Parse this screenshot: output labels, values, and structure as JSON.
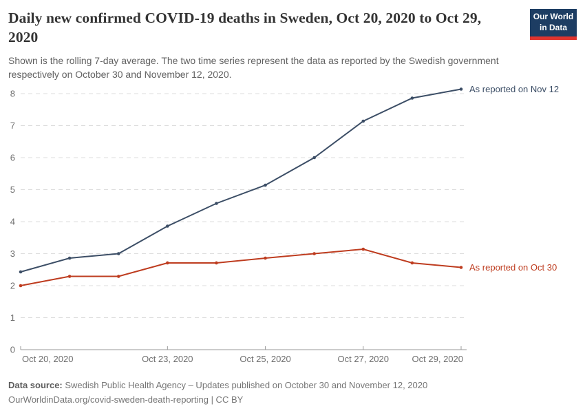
{
  "header": {
    "logo": {
      "line1": "Our World",
      "line2": "in Data",
      "bg_color": "#1d3d63",
      "accent_color": "#e0342e"
    }
  },
  "chart_data": {
    "type": "line",
    "title": "Daily new confirmed COVID-19 deaths in Sweden, Oct 20, 2020 to Oct 29, 2020",
    "subtitle": "Shown is the rolling 7-day average. The two time series represent the data as reported by the Swedish government respectively on October 30 and November 12, 2020.",
    "x": [
      "Oct 20, 2020",
      "Oct 21, 2020",
      "Oct 22, 2020",
      "Oct 23, 2020",
      "Oct 24, 2020",
      "Oct 25, 2020",
      "Oct 26, 2020",
      "Oct 27, 2020",
      "Oct 28, 2020",
      "Oct 29, 2020"
    ],
    "series": [
      {
        "name": "As reported on Nov 12",
        "color": "#3C4E66",
        "values": [
          2.43,
          2.86,
          3.0,
          3.86,
          4.57,
          5.14,
          6.0,
          7.14,
          7.86,
          8.14
        ]
      },
      {
        "name": "As reported on Oct 30",
        "color": "#BE3C1F",
        "values": [
          2.0,
          2.29,
          2.29,
          2.71,
          2.71,
          2.86,
          3.0,
          3.14,
          2.71,
          2.57
        ]
      }
    ],
    "xlabel": "",
    "ylabel": "",
    "ylim": [
      0,
      8.2
    ],
    "yticks": [
      0,
      1,
      2,
      3,
      4,
      5,
      6,
      7,
      8
    ],
    "xticks": [
      {
        "label": "Oct 20, 2020",
        "index": 0,
        "anchor": "start"
      },
      {
        "label": "Oct 23, 2020",
        "index": 3,
        "anchor": "middle"
      },
      {
        "label": "Oct 25, 2020",
        "index": 5,
        "anchor": "middle"
      },
      {
        "label": "Oct 27, 2020",
        "index": 7,
        "anchor": "middle"
      },
      {
        "label": "Oct 29, 2020",
        "index": 9,
        "anchor": "end"
      }
    ],
    "grid": "dashed-horizontal-lines",
    "legend": "line-end-labels"
  },
  "footer": {
    "source_label": "Data source:",
    "source_text": "Swedish Public Health Agency – Updates published on October 30 and November 12, 2020",
    "url_text": "OurWorldinData.org/covid-sweden-death-reporting | CC BY"
  }
}
